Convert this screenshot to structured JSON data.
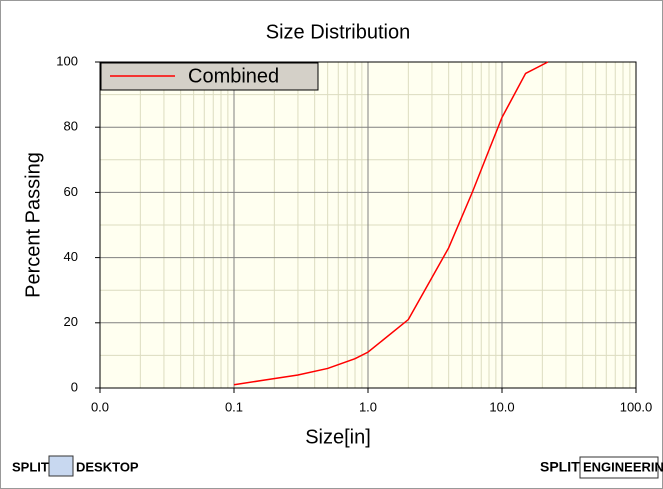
{
  "chart_data": {
    "type": "line",
    "title": "Size Distribution",
    "x_label": "Size[in]",
    "y_label": "Percent Passing",
    "x": [
      0.1,
      0.3,
      0.5,
      0.8,
      1.0,
      2.0,
      4.0,
      6.0,
      8.0,
      10.0,
      15.0,
      22.0
    ],
    "series": [
      {
        "name": "Combined",
        "color": "#ff0000",
        "values": [
          1,
          4,
          6,
          9,
          11,
          21,
          43,
          60,
          73,
          83,
          96.5,
          100
        ]
      }
    ],
    "xscale": "log",
    "xlim": [
      0.01,
      100
    ],
    "xticks": [
      {
        "value": 0.01,
        "label": "0.0"
      },
      {
        "value": 0.1,
        "label": "0.1"
      },
      {
        "value": 1,
        "label": "1.0"
      },
      {
        "value": 10,
        "label": "10.0"
      },
      {
        "value": 100,
        "label": "100.0"
      }
    ],
    "ylim": [
      0,
      100
    ],
    "yticks": [
      0,
      20,
      40,
      60,
      80,
      100
    ],
    "grid": true,
    "minor_grid": true,
    "legend": "upper left",
    "background": "#fffff0"
  },
  "logos": {
    "left": [
      "SPLIT",
      "DESKTOP"
    ],
    "right": [
      "SPLIT",
      "ENGINEERING"
    ]
  }
}
